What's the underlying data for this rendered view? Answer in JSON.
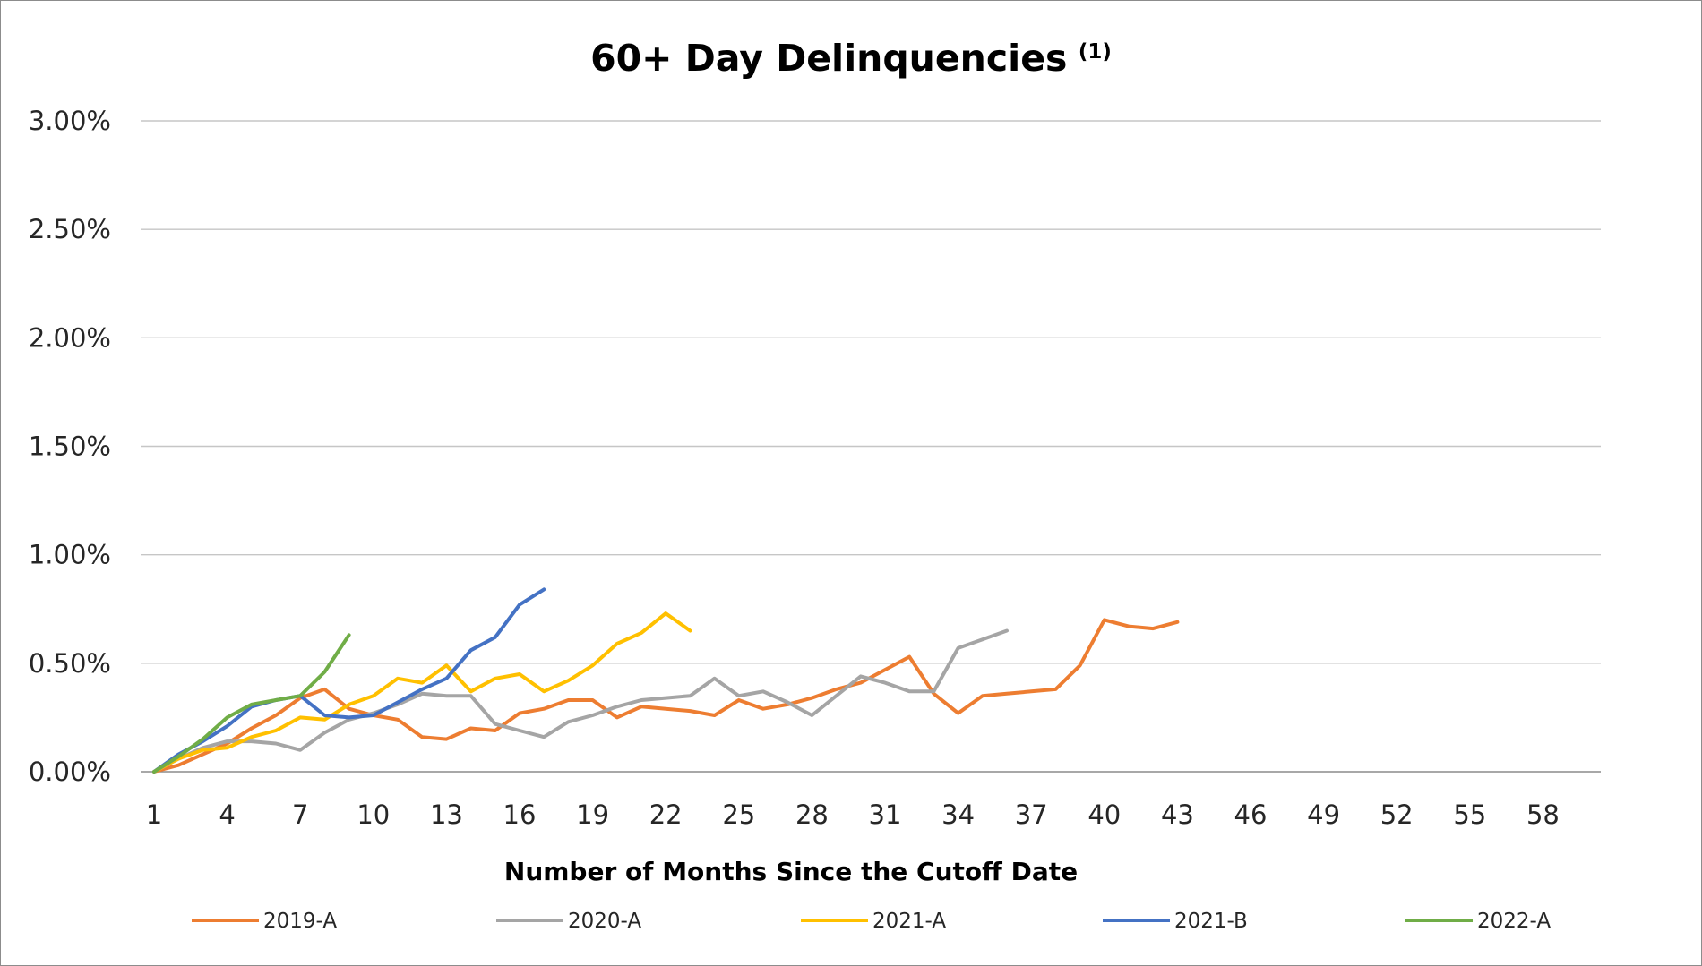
{
  "chart_data": {
    "type": "line",
    "title": "60+ Day Delinquencies",
    "title_superscript": "(1)",
    "xlabel": "Number of Months Since the Cutoff Date",
    "ylabel": "",
    "x_ticks": [
      "1",
      "4",
      "7",
      "10",
      "13",
      "16",
      "19",
      "22",
      "25",
      "28",
      "31",
      "34",
      "37",
      "40",
      "43",
      "46",
      "49",
      "52",
      "55",
      "58"
    ],
    "y_ticks": [
      "0.00%",
      "0.50%",
      "1.00%",
      "1.50%",
      "2.00%",
      "2.50%",
      "3.00%"
    ],
    "xlim": [
      1,
      61
    ],
    "ylim": [
      0,
      3
    ],
    "y_unit": "percent",
    "grid": "horizontal",
    "legend_position": "bottom",
    "series": [
      {
        "name": "2019-A",
        "color": "#ED7D31",
        "x": [
          1,
          2,
          3,
          4,
          5,
          6,
          7,
          8,
          9,
          10,
          11,
          12,
          13,
          14,
          15,
          16,
          17,
          18,
          19,
          20,
          21,
          22,
          23,
          24,
          25,
          26,
          27,
          28,
          29,
          30,
          31,
          32,
          33,
          34,
          35,
          36,
          37,
          38,
          39,
          40,
          41,
          42,
          43
        ],
        "values": [
          0.0,
          0.03,
          0.08,
          0.13,
          0.2,
          0.26,
          0.34,
          0.38,
          0.29,
          0.26,
          0.24,
          0.16,
          0.15,
          0.2,
          0.19,
          0.27,
          0.29,
          0.33,
          0.33,
          0.25,
          0.3,
          0.29,
          0.28,
          0.26,
          0.33,
          0.29,
          0.31,
          0.34,
          0.38,
          0.41,
          0.47,
          0.53,
          0.36,
          0.27,
          0.35,
          0.36,
          0.37,
          0.38,
          0.49,
          0.7,
          0.67,
          0.66,
          0.69
        ]
      },
      {
        "name": "2020-A",
        "color": "#A5A5A5",
        "x": [
          1,
          2,
          3,
          4,
          5,
          6,
          7,
          8,
          9,
          10,
          11,
          12,
          13,
          14,
          15,
          16,
          17,
          18,
          19,
          20,
          21,
          22,
          23,
          24,
          25,
          26,
          27,
          28,
          29,
          30,
          31,
          32,
          33,
          34,
          35,
          36
        ],
        "values": [
          0.0,
          0.06,
          0.11,
          0.14,
          0.14,
          0.13,
          0.1,
          0.18,
          0.24,
          0.27,
          0.31,
          0.36,
          0.35,
          0.35,
          0.22,
          0.19,
          0.16,
          0.23,
          0.26,
          0.3,
          0.33,
          0.34,
          0.35,
          0.43,
          0.35,
          0.37,
          0.32,
          0.26,
          0.35,
          0.44,
          0.41,
          0.37,
          0.37,
          0.57,
          0.61,
          0.65
        ]
      },
      {
        "name": "2021-A",
        "color": "#FFC000",
        "x": [
          1,
          2,
          3,
          4,
          5,
          6,
          7,
          8,
          9,
          10,
          11,
          12,
          13,
          14,
          15,
          16,
          17,
          18,
          19,
          20,
          21,
          22,
          23
        ],
        "values": [
          0.0,
          0.06,
          0.1,
          0.11,
          0.16,
          0.19,
          0.25,
          0.24,
          0.31,
          0.35,
          0.43,
          0.41,
          0.49,
          0.37,
          0.43,
          0.45,
          0.37,
          0.42,
          0.49,
          0.59,
          0.64,
          0.73,
          0.65
        ]
      },
      {
        "name": "2021-B",
        "color": "#4472C4",
        "x": [
          1,
          2,
          3,
          4,
          5,
          6,
          7,
          8,
          9,
          10,
          11,
          12,
          13,
          14,
          15,
          16,
          17
        ],
        "values": [
          0.0,
          0.08,
          0.14,
          0.21,
          0.3,
          0.33,
          0.35,
          0.26,
          0.25,
          0.26,
          0.32,
          0.38,
          0.43,
          0.56,
          0.62,
          0.77,
          0.84
        ]
      },
      {
        "name": "2022-A",
        "color": "#70AD47",
        "x": [
          1,
          2,
          3,
          4,
          5,
          6,
          7,
          8,
          9
        ],
        "values": [
          0.0,
          0.07,
          0.15,
          0.25,
          0.31,
          0.33,
          0.35,
          0.46,
          0.63
        ]
      }
    ]
  }
}
